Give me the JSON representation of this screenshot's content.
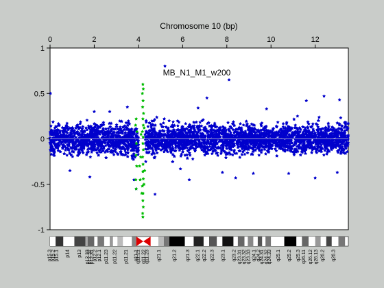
{
  "chart_data": {
    "type": "scatter",
    "title": "Chromosome 10 (bp)",
    "annotation": "MB_N1_M1_w200",
    "x_axis_position": "top",
    "xlim": [
      0,
      13.5
    ],
    "ylim": [
      -1,
      1
    ],
    "x_ticks": [
      0,
      2,
      4,
      6,
      8,
      10,
      12
    ],
    "y_ticks": [
      1,
      0.5,
      0,
      -0.5,
      -1
    ],
    "x_tick_labels": [
      "0",
      "2",
      "4",
      "6",
      "8",
      "10",
      "12"
    ],
    "y_tick_labels": [
      "1",
      "0.5",
      "0",
      "-0.5",
      "-1"
    ],
    "grid": false,
    "baseline": 0,
    "colors": {
      "main": "#0000cc",
      "highlight": "#00bb00",
      "baseline": "#9999cc",
      "centromere": "#dd0000",
      "background": "#c9ccc9",
      "panel": "#ffffff"
    },
    "series": [
      {
        "color": "#0000cc",
        "x_range": [
          0,
          13.5
        ],
        "typical_band": [
          -0.25,
          0.25
        ],
        "outliers": [
          [
            0.02,
            0.5
          ],
          [
            5.2,
            0.8
          ],
          [
            8.1,
            0.65
          ],
          [
            2.0,
            0.3
          ],
          [
            3.5,
            0.35
          ],
          [
            7.1,
            0.45
          ],
          [
            9.8,
            0.33
          ],
          [
            11.6,
            0.42
          ],
          [
            12.4,
            0.47
          ],
          [
            13.1,
            0.43
          ],
          [
            4.75,
            -0.61
          ],
          [
            1.8,
            -0.42
          ],
          [
            0.9,
            -0.35
          ],
          [
            5.9,
            -0.33
          ],
          [
            6.3,
            -0.45
          ],
          [
            7.8,
            -0.37
          ],
          [
            8.4,
            -0.43
          ],
          [
            9.2,
            -0.38
          ],
          [
            10.8,
            -0.38
          ],
          [
            12.0,
            -0.43
          ],
          [
            13.0,
            -0.37
          ],
          [
            3.8,
            -0.45
          ],
          [
            3.9,
            -0.55
          ],
          [
            4.33,
            -0.25
          ],
          [
            4.35,
            0.2
          ],
          [
            11.2,
            0.25
          ],
          [
            2.7,
            0.3
          ],
          [
            6.7,
            0.34
          ]
        ]
      },
      {
        "color": "#00bb00",
        "x_range": [
          3.85,
          4.3
        ],
        "points": [
          [
            4.2,
            0.6
          ],
          [
            4.22,
            0.55
          ],
          [
            4.18,
            0.5
          ],
          [
            4.21,
            0.42
          ],
          [
            4.19,
            0.35
          ],
          [
            4.23,
            0.28
          ],
          [
            4.2,
            0.22
          ],
          [
            4.22,
            0.15
          ],
          [
            4.18,
            0.08
          ],
          [
            4.21,
            0.02
          ],
          [
            4.2,
            -0.05
          ],
          [
            4.22,
            -0.12
          ],
          [
            4.19,
            -0.2
          ],
          [
            4.21,
            -0.28
          ],
          [
            4.2,
            -0.36
          ],
          [
            4.22,
            -0.44
          ],
          [
            4.18,
            -0.52
          ],
          [
            4.21,
            -0.6
          ],
          [
            4.2,
            -0.68
          ],
          [
            4.22,
            -0.75
          ],
          [
            4.19,
            -0.82
          ],
          [
            4.2,
            -0.86
          ],
          [
            3.9,
            -0.55
          ],
          [
            3.88,
            -0.45
          ],
          [
            3.92,
            -0.3
          ],
          [
            3.89,
            -0.18
          ],
          [
            3.91,
            -0.05
          ],
          [
            3.93,
            0.08
          ],
          [
            3.87,
            0.15
          ],
          [
            3.9,
            0.22
          ],
          [
            4.05,
            -0.3
          ],
          [
            4.08,
            -0.45
          ],
          [
            4.1,
            -0.2
          ],
          [
            4.12,
            0.05
          ],
          [
            4.15,
            -0.6
          ],
          [
            4.25,
            -0.5
          ],
          [
            4.26,
            0.12
          ],
          [
            4.28,
            -0.35
          ]
        ]
      }
    ]
  },
  "ideogram": {
    "band_labels": [
      "p15.3",
      "p15.2",
      "p15.1",
      "p14",
      "p13",
      "p12.33",
      "p12.32",
      "p12.31",
      "p12.2",
      "p12.1",
      "p11.23",
      "p11.22",
      "p11.21",
      "q11.1",
      "q11.21",
      "q11.22",
      "q11.23",
      "q21.1",
      "q21.2",
      "q21.3",
      "q22.1",
      "q22.2",
      "q22.3",
      "q23.1",
      "q23.2",
      "q23.31",
      "q23.32",
      "q23.33",
      "q24.1",
      "q24.2",
      "q24.31",
      "q24.32",
      "q24.33",
      "q25.1",
      "q25.2",
      "q25.3",
      "q26.11",
      "q26.12",
      "q26.13",
      "q26.2",
      "q26.3"
    ]
  }
}
